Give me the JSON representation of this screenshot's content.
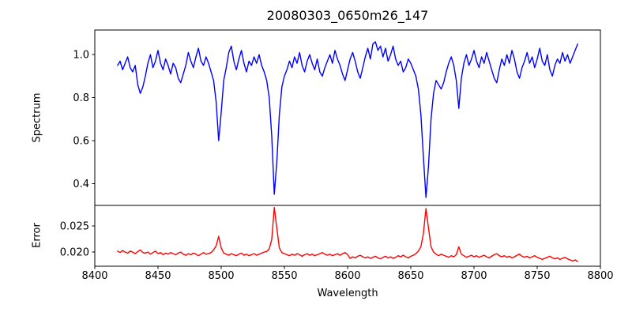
{
  "figure": {
    "background": "#ffffff",
    "axis_color": "#000000"
  },
  "chart_data": {
    "type": "line",
    "title": "20080303_0650m26_147",
    "xlabel": "Wavelength",
    "grid": false,
    "legend": "none",
    "xlim": [
      8400,
      8800
    ],
    "xticks": [
      8400,
      8450,
      8500,
      8550,
      8600,
      8650,
      8700,
      8750,
      8800
    ],
    "xtick_labels": [
      "8400",
      "8450",
      "8500",
      "8550",
      "8600",
      "8650",
      "8700",
      "8750",
      "8800"
    ],
    "x": [
      8418,
      8420,
      8422,
      8424,
      8426,
      8428,
      8430,
      8432,
      8434,
      8436,
      8438,
      8440,
      8442,
      8444,
      8446,
      8448,
      8450,
      8452,
      8454,
      8456,
      8458,
      8460,
      8462,
      8464,
      8466,
      8468,
      8470,
      8472,
      8474,
      8476,
      8478,
      8480,
      8482,
      8484,
      8486,
      8488,
      8490,
      8492,
      8494,
      8496,
      8498,
      8500,
      8502,
      8504,
      8506,
      8508,
      8510,
      8512,
      8514,
      8516,
      8518,
      8520,
      8522,
      8524,
      8526,
      8528,
      8530,
      8532,
      8534,
      8536,
      8538,
      8540,
      8542,
      8544,
      8546,
      8548,
      8550,
      8552,
      8554,
      8556,
      8558,
      8560,
      8562,
      8564,
      8566,
      8568,
      8570,
      8572,
      8574,
      8576,
      8578,
      8580,
      8582,
      8584,
      8586,
      8588,
      8590,
      8592,
      8594,
      8596,
      8598,
      8600,
      8602,
      8604,
      8606,
      8608,
      8610,
      8612,
      8614,
      8616,
      8618,
      8620,
      8622,
      8624,
      8626,
      8628,
      8630,
      8632,
      8634,
      8636,
      8638,
      8640,
      8642,
      8644,
      8646,
      8648,
      8650,
      8652,
      8654,
      8656,
      8658,
      8660,
      8662,
      8664,
      8666,
      8668,
      8670,
      8672,
      8674,
      8676,
      8678,
      8680,
      8682,
      8684,
      8686,
      8688,
      8690,
      8692,
      8694,
      8696,
      8698,
      8700,
      8702,
      8704,
      8706,
      8708,
      8710,
      8712,
      8714,
      8716,
      8718,
      8720,
      8722,
      8724,
      8726,
      8728,
      8730,
      8732,
      8734,
      8736,
      8738,
      8740,
      8742,
      8744,
      8746,
      8748,
      8750,
      8752,
      8754,
      8756,
      8758,
      8760,
      8762,
      8764,
      8766,
      8768,
      8770,
      8772,
      8774,
      8776,
      8778,
      8780,
      8782
    ],
    "series": [
      {
        "name": "Spectrum",
        "panel": "top",
        "color": "#0000ff",
        "ylabel": "Spectrum",
        "ylim": [
          0.298,
          1.115
        ],
        "yticks": [
          0.4,
          0.6,
          0.8,
          1.0
        ],
        "ytick_labels": [
          "0.4",
          "0.6",
          "0.8",
          "1.0"
        ],
        "values": [
          0.95,
          0.97,
          0.93,
          0.96,
          0.99,
          0.94,
          0.92,
          0.95,
          0.86,
          0.82,
          0.85,
          0.9,
          0.96,
          1.0,
          0.94,
          0.97,
          1.02,
          0.96,
          0.93,
          0.98,
          0.95,
          0.91,
          0.96,
          0.94,
          0.89,
          0.87,
          0.91,
          0.95,
          1.01,
          0.97,
          0.94,
          0.99,
          1.03,
          0.97,
          0.95,
          0.99,
          0.96,
          0.92,
          0.88,
          0.78,
          0.6,
          0.73,
          0.88,
          0.94,
          1.01,
          1.04,
          0.97,
          0.93,
          0.98,
          1.02,
          0.96,
          0.92,
          0.97,
          0.95,
          0.99,
          0.96,
          1.0,
          0.95,
          0.92,
          0.88,
          0.8,
          0.62,
          0.35,
          0.5,
          0.72,
          0.85,
          0.9,
          0.93,
          0.97,
          0.94,
          0.99,
          0.96,
          1.01,
          0.95,
          0.92,
          0.97,
          1.0,
          0.96,
          0.93,
          0.98,
          0.92,
          0.9,
          0.94,
          0.97,
          1.0,
          0.96,
          1.02,
          0.98,
          0.95,
          0.91,
          0.88,
          0.93,
          0.98,
          1.01,
          0.97,
          0.92,
          0.89,
          0.94,
          0.99,
          1.03,
          0.98,
          1.05,
          1.06,
          1.02,
          1.04,
          0.99,
          1.03,
          0.97,
          1.0,
          1.04,
          0.98,
          0.95,
          0.97,
          0.92,
          0.94,
          0.98,
          0.96,
          0.93,
          0.9,
          0.84,
          0.72,
          0.52,
          0.335,
          0.48,
          0.7,
          0.82,
          0.88,
          0.86,
          0.84,
          0.87,
          0.92,
          0.96,
          0.99,
          0.95,
          0.88,
          0.75,
          0.89,
          0.96,
          1.0,
          0.95,
          0.98,
          1.02,
          0.97,
          0.94,
          0.99,
          0.96,
          1.01,
          0.97,
          0.93,
          0.89,
          0.87,
          0.93,
          0.98,
          0.95,
          1.0,
          0.96,
          1.02,
          0.98,
          0.92,
          0.89,
          0.94,
          0.97,
          1.01,
          0.96,
          0.99,
          0.94,
          0.98,
          1.03,
          0.97,
          0.95,
          1.0,
          0.93,
          0.9,
          0.95,
          0.98,
          0.96,
          1.01,
          0.97,
          1.0,
          0.96,
          0.99,
          1.02,
          1.05
        ]
      },
      {
        "name": "Error",
        "panel": "bottom",
        "color": "#ff0000",
        "ylabel": "Error",
        "ylim": [
          0.0173,
          0.0289
        ],
        "yticks": [
          0.02,
          0.025
        ],
        "ytick_labels": [
          "0.020",
          "0.025"
        ],
        "values": [
          0.0202,
          0.0199,
          0.0203,
          0.02,
          0.0198,
          0.0202,
          0.02,
          0.0197,
          0.0201,
          0.0204,
          0.0199,
          0.0198,
          0.02,
          0.0196,
          0.0199,
          0.0202,
          0.0197,
          0.0199,
          0.0195,
          0.0198,
          0.0196,
          0.0199,
          0.0197,
          0.0195,
          0.0198,
          0.02,
          0.0196,
          0.0194,
          0.0197,
          0.0195,
          0.0198,
          0.0196,
          0.0193,
          0.0196,
          0.0199,
          0.0196,
          0.0197,
          0.0199,
          0.0204,
          0.0212,
          0.023,
          0.0208,
          0.0198,
          0.0196,
          0.0194,
          0.0197,
          0.0195,
          0.0193,
          0.0196,
          0.0198,
          0.0194,
          0.0196,
          0.0193,
          0.0195,
          0.0197,
          0.0194,
          0.0196,
          0.0198,
          0.02,
          0.0201,
          0.0206,
          0.0224,
          0.0285,
          0.0246,
          0.0208,
          0.0199,
          0.0197,
          0.0195,
          0.0193,
          0.0196,
          0.0194,
          0.0197,
          0.0195,
          0.0192,
          0.0195,
          0.0197,
          0.0194,
          0.0196,
          0.0193,
          0.0195,
          0.0197,
          0.0199,
          0.0196,
          0.0194,
          0.0196,
          0.0193,
          0.0195,
          0.0197,
          0.0194,
          0.0197,
          0.0199,
          0.0195,
          0.0188,
          0.0191,
          0.0189,
          0.0192,
          0.0194,
          0.0191,
          0.0189,
          0.0191,
          0.0188,
          0.019,
          0.0192,
          0.0189,
          0.0187,
          0.019,
          0.0192,
          0.0189,
          0.0191,
          0.0188,
          0.019,
          0.0193,
          0.0191,
          0.0194,
          0.0191,
          0.0189,
          0.0192,
          0.0194,
          0.0197,
          0.0202,
          0.021,
          0.0236,
          0.0283,
          0.0246,
          0.021,
          0.02,
          0.0196,
          0.0193,
          0.0196,
          0.0194,
          0.0192,
          0.019,
          0.0193,
          0.0191,
          0.0195,
          0.021,
          0.0196,
          0.0193,
          0.019,
          0.0192,
          0.0194,
          0.0191,
          0.0193,
          0.019,
          0.0192,
          0.0194,
          0.0191,
          0.0189,
          0.0192,
          0.0195,
          0.0197,
          0.0193,
          0.0191,
          0.0193,
          0.019,
          0.0192,
          0.0189,
          0.0191,
          0.0194,
          0.0196,
          0.0192,
          0.019,
          0.0192,
          0.0189,
          0.0191,
          0.0193,
          0.019,
          0.0188,
          0.0186,
          0.0188,
          0.019,
          0.0192,
          0.0189,
          0.0187,
          0.0189,
          0.0186,
          0.0188,
          0.019,
          0.0187,
          0.0185,
          0.0183,
          0.0185,
          0.0182
        ]
      }
    ]
  }
}
